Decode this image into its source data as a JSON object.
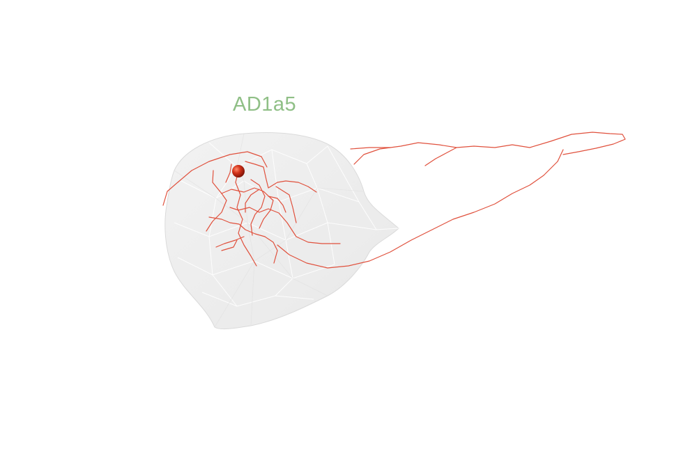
{
  "title": "AD1a5",
  "colors": {
    "title": "#8fbf86",
    "neuron": "#e0503c",
    "soma": "#c42b12",
    "volume_fill": "#f0f0f0",
    "volume_edge": "#dddddd"
  },
  "icons": {
    "soma": "red-sphere-icon"
  }
}
